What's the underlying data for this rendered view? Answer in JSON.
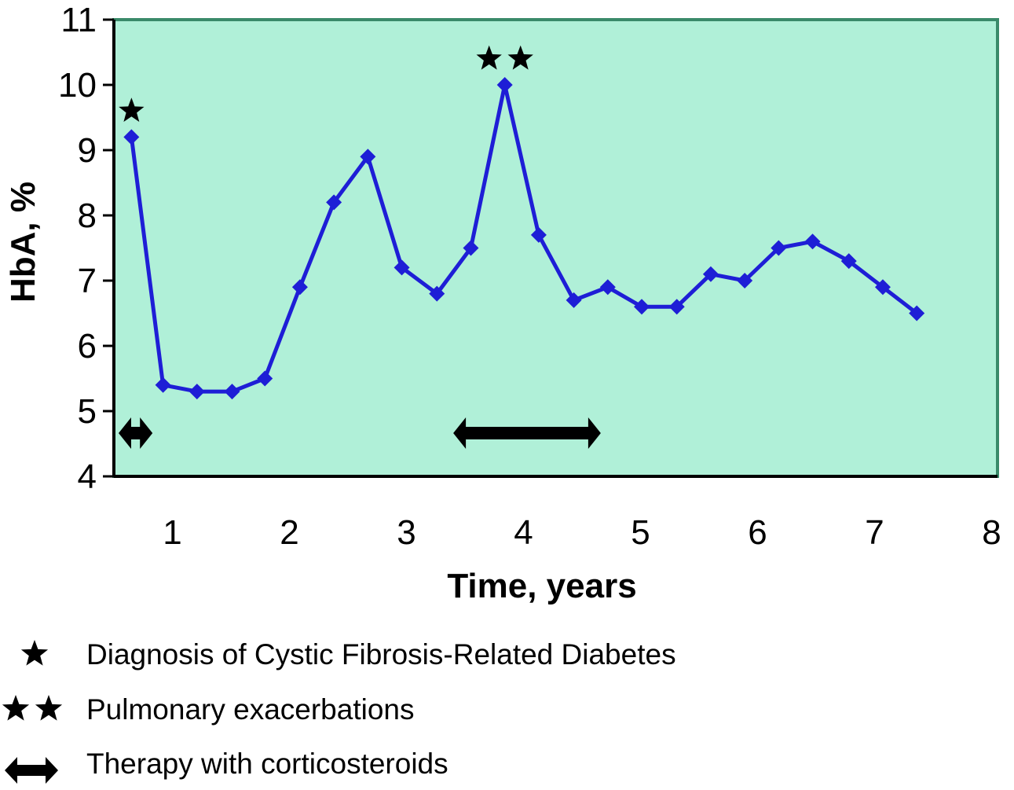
{
  "chart_data": {
    "type": "line",
    "xlabel": "Time, years",
    "ylabel": "HbA, %",
    "ylim": [
      4,
      11
    ],
    "xlim": [
      0.5,
      8.05
    ],
    "y_ticks": [
      "4",
      "5",
      "6",
      "7",
      "8",
      "9",
      "10",
      "11"
    ],
    "x_tick_labels": [
      {
        "label": "1",
        "x": 1.0
      },
      {
        "label": "2",
        "x": 2.0
      },
      {
        "label": "3",
        "x": 3.0
      },
      {
        "label": "4",
        "x": 4.0
      },
      {
        "label": "5",
        "x": 5.0
      },
      {
        "label": "6",
        "x": 6.0
      },
      {
        "label": "7",
        "x": 7.0
      },
      {
        "label": "8",
        "x": 8.0
      }
    ],
    "grid": false,
    "series": [
      {
        "points": [
          {
            "x": 0.65,
            "y": 9.2
          },
          {
            "x": 0.92,
            "y": 5.4
          },
          {
            "x": 1.21,
            "y": 5.3
          },
          {
            "x": 1.51,
            "y": 5.3
          },
          {
            "x": 1.79,
            "y": 5.5
          },
          {
            "x": 2.09,
            "y": 6.9
          },
          {
            "x": 2.38,
            "y": 8.2
          },
          {
            "x": 2.67,
            "y": 8.9
          },
          {
            "x": 2.96,
            "y": 7.2
          },
          {
            "x": 3.26,
            "y": 6.8
          },
          {
            "x": 3.55,
            "y": 7.5
          },
          {
            "x": 3.84,
            "y": 10.0
          },
          {
            "x": 4.13,
            "y": 7.7
          },
          {
            "x": 4.43,
            "y": 6.7
          },
          {
            "x": 4.72,
            "y": 6.9
          },
          {
            "x": 5.01,
            "y": 6.6
          },
          {
            "x": 5.31,
            "y": 6.6
          },
          {
            "x": 5.6,
            "y": 7.1
          },
          {
            "x": 5.89,
            "y": 7.0
          },
          {
            "x": 6.18,
            "y": 7.5
          },
          {
            "x": 6.47,
            "y": 7.6
          },
          {
            "x": 6.78,
            "y": 7.3
          },
          {
            "x": 7.07,
            "y": 6.9
          },
          {
            "x": 7.36,
            "y": 6.5
          }
        ]
      }
    ],
    "markers": {
      "single_star": {
        "x": 0.65,
        "y": 9.6
      },
      "double_star": {
        "x": 3.84,
        "y": 10.4
      }
    },
    "therapy_periods": [
      {
        "x_start": 0.54,
        "x_end": 0.83
      },
      {
        "x_start": 3.4,
        "x_end": 4.66
      }
    ],
    "legend": [
      {
        "symbol": "star",
        "label": "Diagnosis of Cystic Fibrosis-Related Diabetes"
      },
      {
        "symbol": "double-star",
        "label": "Pulmonary exacerbations"
      },
      {
        "symbol": "double-arrow",
        "label": "Therapy with corticosteroids"
      }
    ],
    "colors": {
      "plot_background": "#b0f0d8",
      "plot_border": "#3a8a6a",
      "line": "#1e1ed6",
      "marker": "#1e1ed6",
      "axis": "#000000",
      "symbol": "#000000"
    }
  }
}
